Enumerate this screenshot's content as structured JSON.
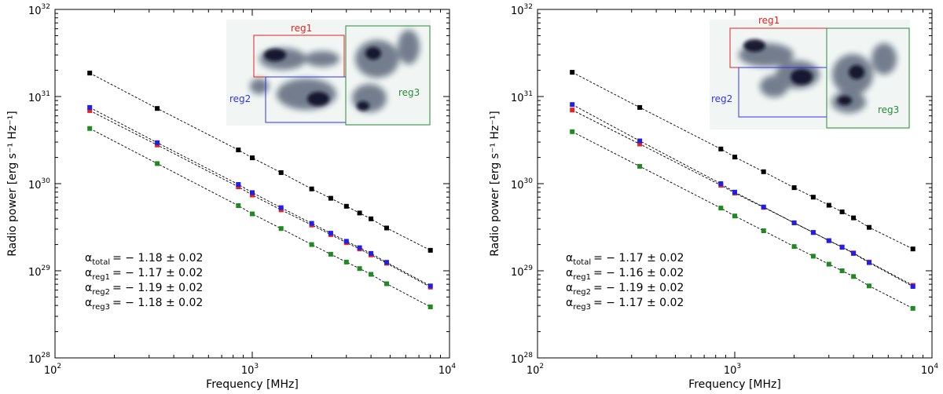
{
  "chart_data": [
    {
      "type": "line",
      "xscale": "log",
      "yscale": "log",
      "xlim": [
        100,
        10000
      ],
      "ylim": [
        1e+28,
        1e+32
      ],
      "xlabel": "Frequency [MHz]",
      "ylabel": "Radio power [erg s⁻¹ Hz⁻¹]",
      "x_ticks": [
        {
          "value": 100,
          "base": "10",
          "exp": "2"
        },
        {
          "value": 1000,
          "base": "10",
          "exp": "3"
        },
        {
          "value": 10000,
          "base": "10",
          "exp": "4"
        }
      ],
      "y_ticks": [
        {
          "value": 1e+28,
          "base": "10",
          "exp": "28"
        },
        {
          "value": 1e+29,
          "base": "10",
          "exp": "29"
        },
        {
          "value": 1e+30,
          "base": "10",
          "exp": "30"
        },
        {
          "value": 1e+31,
          "base": "10",
          "exp": "31"
        },
        {
          "value": 1e+32,
          "base": "10",
          "exp": "32"
        }
      ],
      "x": [
        150,
        330,
        850,
        1000,
        1400,
        2000,
        2500,
        3000,
        3500,
        4000,
        4800,
        8000
      ],
      "series": [
        {
          "name": "total",
          "color": "#000000",
          "values": [
            1.86e+31,
            7.3e+30,
            2.44e+30,
            1.98e+30,
            1.34e+30,
            8.7e+29,
            6.8e+29,
            5.5e+29,
            4.6e+29,
            3.95e+29,
            3.1e+29,
            1.72e+29
          ]
        },
        {
          "name": "reg1",
          "color": "#e8221f",
          "values": [
            6.9e+30,
            2.78e+30,
            9.2e+29,
            7.4e+29,
            5e+29,
            3.35e+29,
            2.6e+29,
            2.1e+29,
            1.78e+29,
            1.52e+29,
            1.22e+29,
            6.5e+28
          ]
        },
        {
          "name": "reg2",
          "color": "#1f1fe8",
          "values": [
            7.5e+30,
            2.95e+30,
            9.8e+29,
            7.9e+29,
            5.3e+29,
            3.5e+29,
            2.7e+29,
            2.18e+29,
            1.84e+29,
            1.58e+29,
            1.25e+29,
            6.7e+28
          ]
        },
        {
          "name": "reg3",
          "color": "#1f8a1f",
          "values": [
            4.3e+30,
            1.7e+30,
            5.6e+29,
            4.5e+29,
            3.05e+29,
            2e+29,
            1.55e+29,
            1.26e+29,
            1.06e+29,
            9.1e+28,
            7.1e+28,
            3.85e+28
          ]
        }
      ],
      "annotations": [
        {
          "sub": "total",
          "value": "= − 1.18 ± 0.02"
        },
        {
          "sub": "reg1",
          "value": "= − 1.17 ± 0.02"
        },
        {
          "sub": "reg2",
          "value": "= − 1.19 ± 0.02"
        },
        {
          "sub": "reg3",
          "value": "= − 1.18 ± 0.02"
        }
      ],
      "inset_labels": [
        "reg1",
        "reg2",
        "reg3"
      ]
    },
    {
      "type": "line",
      "xscale": "log",
      "yscale": "log",
      "xlim": [
        100,
        10000
      ],
      "ylim": [
        1e+28,
        1e+32
      ],
      "xlabel": "Frequency [MHz]",
      "ylabel": "Radio power [erg s⁻¹ Hz⁻¹]",
      "x_ticks": [
        {
          "value": 100,
          "base": "10",
          "exp": "2"
        },
        {
          "value": 1000,
          "base": "10",
          "exp": "3"
        },
        {
          "value": 10000,
          "base": "10",
          "exp": "4"
        }
      ],
      "y_ticks": [
        {
          "value": 1e+28,
          "base": "10",
          "exp": "28"
        },
        {
          "value": 1e+29,
          "base": "10",
          "exp": "29"
        },
        {
          "value": 1e+30,
          "base": "10",
          "exp": "30"
        },
        {
          "value": 1e+31,
          "base": "10",
          "exp": "31"
        },
        {
          "value": 1e+32,
          "base": "10",
          "exp": "32"
        }
      ],
      "x": [
        150,
        330,
        850,
        1000,
        1400,
        2000,
        2500,
        3000,
        3500,
        4000,
        4800,
        8000
      ],
      "series": [
        {
          "name": "total",
          "color": "#000000",
          "values": [
            1.9e+31,
            7.5e+30,
            2.5e+30,
            2.02e+30,
            1.37e+30,
            9e+29,
            7e+29,
            5.65e+29,
            4.75e+29,
            4.05e+29,
            3.15e+29,
            1.78e+29
          ]
        },
        {
          "name": "reg1",
          "color": "#e8221f",
          "values": [
            7e+30,
            2.85e+30,
            9.6e+29,
            7.8e+29,
            5.35e+29,
            3.55e+29,
            2.75e+29,
            2.22e+29,
            1.88e+29,
            1.6e+29,
            1.26e+29,
            6.8e+28
          ]
        },
        {
          "name": "reg2",
          "color": "#1f1fe8",
          "values": [
            8.1e+30,
            3.1e+30,
            1e+30,
            8e+29,
            5.4e+29,
            3.55e+29,
            2.75e+29,
            2.22e+29,
            1.86e+29,
            1.58e+29,
            1.24e+29,
            6.6e+28
          ]
        },
        {
          "name": "reg3",
          "color": "#1f8a1f",
          "values": [
            3.95e+30,
            1.58e+30,
            5.25e+29,
            4.25e+29,
            2.88e+29,
            1.9e+29,
            1.47e+29,
            1.19e+29,
            1e+29,
            8.6e+28,
            6.7e+28,
            3.7e+28
          ]
        }
      ],
      "annotations": [
        {
          "sub": "total",
          "value": "= − 1.17 ± 0.02"
        },
        {
          "sub": "reg1",
          "value": "= − 1.16 ± 0.02"
        },
        {
          "sub": "reg2",
          "value": "= − 1.19 ± 0.02"
        },
        {
          "sub": "reg3",
          "value": "= − 1.17 ± 0.02"
        }
      ],
      "inset_labels": [
        "reg1",
        "reg2",
        "reg3"
      ]
    }
  ]
}
